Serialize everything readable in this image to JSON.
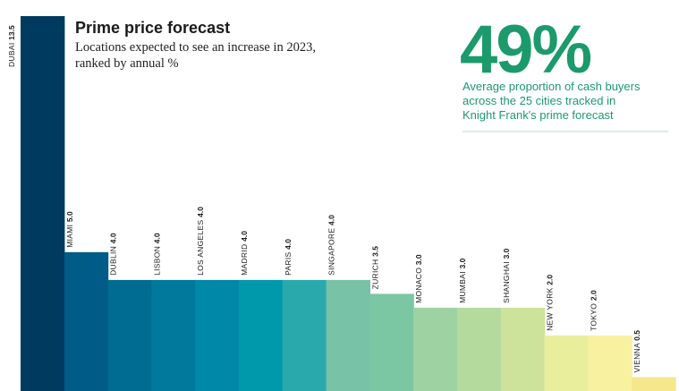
{
  "header": {
    "title": "Prime price forecast",
    "subtitle_line1": "Locations expected to see an increase in 2023,",
    "subtitle_line2": "ranked by annual %"
  },
  "callout": {
    "value": "49%",
    "line1": "Average proportion of cash buyers",
    "line2": "across the 25 cities tracked in",
    "line3": "Knight Frank's prime forecast"
  },
  "chart_data": {
    "type": "bar",
    "title": "Prime price forecast",
    "categories": [
      "DUBAI",
      "MIAMI",
      "DUBLIN",
      "LISBON",
      "LOS ANGELES",
      "MADRID",
      "PARIS",
      "SINGAPORE",
      "ZURICH",
      "MONACO",
      "MUMBAI",
      "SHANGHAI",
      "NEW YORK",
      "TOKYO",
      "VIENNA"
    ],
    "values": [
      13.5,
      5.0,
      4.0,
      4.0,
      4.0,
      4.0,
      4.0,
      4.0,
      3.5,
      3.0,
      3.0,
      3.0,
      2.0,
      2.0,
      0.5
    ],
    "value_labels": [
      "13.5",
      "5.0",
      "4.0",
      "4.0",
      "4.0",
      "4.0",
      "4.0",
      "4.0",
      "3.5",
      "3.0",
      "3.0",
      "3.0",
      "2.0",
      "2.0",
      "0.5"
    ],
    "colors": [
      "#003a5e",
      "#005b86",
      "#006c92",
      "#00799c",
      "#0088a8",
      "#0099ac",
      "#2aa9ad",
      "#78c2a8",
      "#7cc7a3",
      "#9fd2a3",
      "#b4da9e",
      "#cde39b",
      "#e9ee9d",
      "#f8f1a0",
      "#f6e68c"
    ],
    "ylim": [
      0,
      13.5
    ],
    "grid": false,
    "legend": "none"
  },
  "colors": {
    "accent": "#1c9a6c",
    "divider": "#b5dcc9"
  }
}
